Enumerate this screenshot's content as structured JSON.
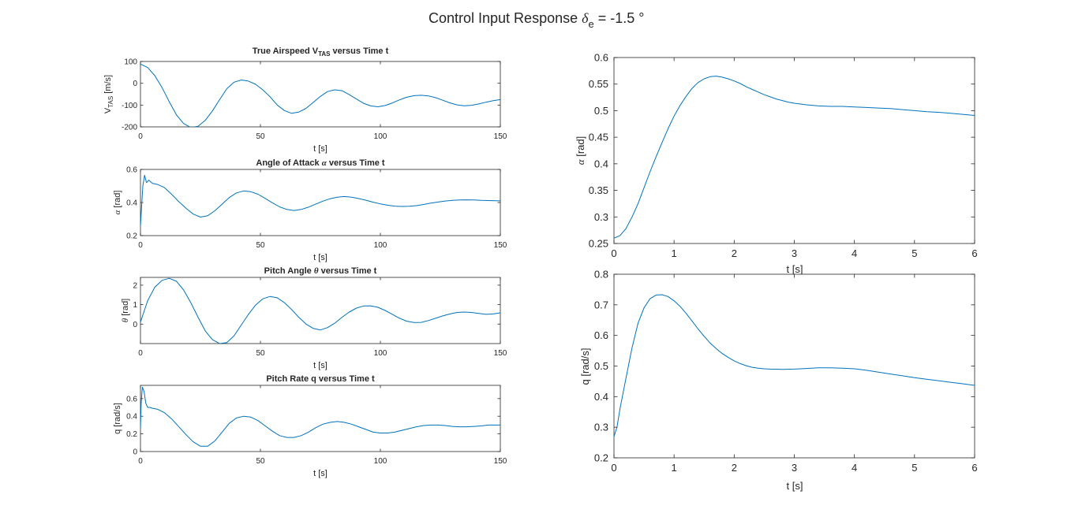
{
  "figure": {
    "title_prefix": "Control Input Response ",
    "title_symbol": "δ",
    "title_subscript": "e",
    "title_suffix": " = -1.5 °"
  },
  "chart_data": [
    {
      "id": "vtas",
      "type": "line",
      "title_pre": "True Airspeed V",
      "title_sub": "TAS",
      "title_post": " versus Time t",
      "xlabel": "t [s]",
      "ylabel_pre": "V",
      "ylabel_sub": "TAS",
      "ylabel_post": " [m/s]",
      "xlim": [
        0,
        150
      ],
      "ylim": [
        -200,
        100
      ],
      "xticks": [
        0,
        50,
        100,
        150
      ],
      "yticks": [
        -200,
        -100,
        0,
        100
      ],
      "grid": false,
      "color": "#0072BD",
      "series": [
        {
          "x": [
            0,
            3,
            6,
            9,
            12,
            15,
            18,
            21,
            24,
            27,
            30,
            33,
            36,
            39,
            42,
            45,
            48,
            51,
            54,
            57,
            60,
            63,
            66,
            69,
            72,
            75,
            78,
            81,
            84,
            87,
            90,
            93,
            96,
            99,
            102,
            105,
            108,
            111,
            114,
            117,
            120,
            123,
            126,
            129,
            132,
            135,
            138,
            141,
            144,
            147,
            150
          ],
          "y": [
            88,
            72,
            35,
            -20,
            -85,
            -145,
            -185,
            -203,
            -197,
            -170,
            -127,
            -75,
            -25,
            5,
            15,
            10,
            -5,
            -30,
            -62,
            -100,
            -125,
            -138,
            -132,
            -115,
            -88,
            -60,
            -38,
            -30,
            -34,
            -52,
            -72,
            -92,
            -104,
            -108,
            -102,
            -90,
            -76,
            -64,
            -57,
            -55,
            -58,
            -66,
            -78,
            -90,
            -99,
            -103,
            -101,
            -95,
            -87,
            -80,
            -75
          ]
        }
      ]
    },
    {
      "id": "alpha-long",
      "type": "line",
      "title_pre": "Angle of Attack ",
      "title_sym": "α",
      "title_post": " versus Time t",
      "xlabel": "t [s]",
      "ylabel_sym": "α",
      "ylabel_post": " [rad]",
      "xlim": [
        0,
        150
      ],
      "ylim": [
        0.2,
        0.6
      ],
      "xticks": [
        0,
        50,
        100,
        150
      ],
      "yticks": [
        0.2,
        0.4,
        0.6
      ],
      "grid": false,
      "color": "#0072BD",
      "series": [
        {
          "x": [
            0,
            0.5,
            1,
            1.7,
            2.5,
            3.5,
            5,
            7,
            10,
            13,
            16,
            19,
            22,
            25,
            28,
            31,
            34,
            37,
            40,
            43,
            46,
            49,
            52,
            55,
            58,
            61,
            64,
            67,
            70,
            73,
            76,
            79,
            82,
            85,
            88,
            91,
            94,
            97,
            100,
            103,
            106,
            109,
            112,
            115,
            118,
            121,
            124,
            127,
            130,
            133,
            136,
            139,
            142,
            145,
            148,
            150
          ],
          "y": [
            0.26,
            0.38,
            0.5,
            0.565,
            0.52,
            0.535,
            0.515,
            0.51,
            0.49,
            0.45,
            0.405,
            0.365,
            0.33,
            0.312,
            0.32,
            0.35,
            0.39,
            0.43,
            0.458,
            0.47,
            0.465,
            0.45,
            0.425,
            0.398,
            0.374,
            0.358,
            0.352,
            0.358,
            0.372,
            0.39,
            0.408,
            0.423,
            0.432,
            0.436,
            0.432,
            0.424,
            0.414,
            0.402,
            0.392,
            0.384,
            0.378,
            0.376,
            0.377,
            0.381,
            0.388,
            0.396,
            0.403,
            0.409,
            0.413,
            0.415,
            0.416,
            0.415,
            0.413,
            0.412,
            0.411,
            0.41
          ]
        }
      ]
    },
    {
      "id": "theta",
      "type": "line",
      "title_pre": "Pitch Angle ",
      "title_sym": "θ",
      "title_post": " versus Time t",
      "xlabel": "t [s]",
      "ylabel_sym": "θ",
      "ylabel_post": " [rad]",
      "xlim": [
        0,
        150
      ],
      "ylim": [
        -1,
        2.4
      ],
      "xticks": [
        0,
        50,
        100,
        150
      ],
      "yticks": [
        0,
        1,
        2
      ],
      "grid": false,
      "color": "#0072BD",
      "series": [
        {
          "x": [
            0,
            3,
            6,
            9,
            12,
            15,
            18,
            21,
            24,
            27,
            30,
            33,
            36,
            39,
            42,
            45,
            48,
            51,
            54,
            57,
            60,
            63,
            66,
            69,
            72,
            75,
            78,
            81,
            84,
            87,
            90,
            93,
            96,
            99,
            102,
            105,
            108,
            111,
            114,
            117,
            120,
            123,
            126,
            129,
            132,
            135,
            138,
            141,
            144,
            147,
            150
          ],
          "y": [
            0.1,
            1.2,
            1.9,
            2.25,
            2.35,
            2.2,
            1.75,
            1.1,
            0.35,
            -0.35,
            -0.8,
            -1.0,
            -0.95,
            -0.6,
            -0.05,
            0.5,
            0.98,
            1.3,
            1.42,
            1.35,
            1.1,
            0.75,
            0.35,
            0.0,
            -0.22,
            -0.3,
            -0.18,
            0.05,
            0.35,
            0.62,
            0.82,
            0.93,
            0.94,
            0.86,
            0.7,
            0.5,
            0.3,
            0.15,
            0.08,
            0.09,
            0.18,
            0.3,
            0.42,
            0.52,
            0.6,
            0.62,
            0.6,
            0.55,
            0.5,
            0.52,
            0.58
          ]
        }
      ]
    },
    {
      "id": "q-long",
      "type": "line",
      "title_pre": "Pitch Rate q versus Time t",
      "xlabel": "t [s]",
      "ylabel": "q [rad/s]",
      "xlim": [
        0,
        150
      ],
      "ylim": [
        0,
        0.75
      ],
      "xticks": [
        0,
        50,
        100,
        150
      ],
      "yticks": [
        0,
        0.2,
        0.4,
        0.6
      ],
      "grid": false,
      "color": "#0072BD",
      "series": [
        {
          "x": [
            0,
            0.3,
            0.8,
            1.5,
            2.2,
            3,
            4,
            5,
            7,
            10,
            13,
            16,
            19,
            22,
            25,
            28,
            31,
            34,
            37,
            40,
            43,
            46,
            49,
            52,
            55,
            58,
            61,
            64,
            67,
            70,
            73,
            76,
            79,
            82,
            85,
            88,
            91,
            94,
            97,
            100,
            103,
            106,
            109,
            112,
            115,
            118,
            121,
            124,
            127,
            130,
            133,
            136,
            139,
            142,
            145,
            148,
            150
          ],
          "y": [
            0.27,
            0.55,
            0.73,
            0.68,
            0.55,
            0.5,
            0.5,
            0.49,
            0.48,
            0.44,
            0.37,
            0.28,
            0.19,
            0.11,
            0.06,
            0.06,
            0.12,
            0.22,
            0.32,
            0.38,
            0.4,
            0.39,
            0.35,
            0.29,
            0.23,
            0.18,
            0.16,
            0.16,
            0.18,
            0.22,
            0.27,
            0.31,
            0.33,
            0.34,
            0.33,
            0.31,
            0.28,
            0.25,
            0.22,
            0.21,
            0.21,
            0.22,
            0.24,
            0.26,
            0.28,
            0.295,
            0.3,
            0.3,
            0.295,
            0.285,
            0.28,
            0.28,
            0.285,
            0.29,
            0.3,
            0.3,
            0.3
          ]
        }
      ]
    },
    {
      "id": "alpha-zoom",
      "type": "line",
      "xlabel": "t [s]",
      "ylabel_sym": "α",
      "ylabel_post": " [rad]",
      "xlim": [
        0,
        6
      ],
      "ylim": [
        0.25,
        0.6
      ],
      "xticks": [
        0,
        1,
        2,
        3,
        4,
        5,
        6
      ],
      "yticks": [
        0.25,
        0.3,
        0.35,
        0.4,
        0.45,
        0.5,
        0.55,
        0.6
      ],
      "grid": false,
      "color": "#0072BD",
      "series": [
        {
          "x": [
            0,
            0.1,
            0.2,
            0.3,
            0.4,
            0.5,
            0.6,
            0.7,
            0.8,
            0.9,
            1.0,
            1.1,
            1.2,
            1.3,
            1.4,
            1.5,
            1.6,
            1.7,
            1.8,
            1.9,
            2.0,
            2.1,
            2.2,
            2.3,
            2.4,
            2.5,
            2.6,
            2.7,
            2.8,
            2.9,
            3.0,
            3.2,
            3.4,
            3.6,
            3.8,
            4.0,
            4.2,
            4.4,
            4.6,
            4.8,
            5.0,
            5.2,
            5.4,
            5.6,
            5.8,
            6.0
          ],
          "y": [
            0.26,
            0.265,
            0.278,
            0.3,
            0.325,
            0.355,
            0.385,
            0.413,
            0.44,
            0.466,
            0.49,
            0.51,
            0.527,
            0.542,
            0.553,
            0.56,
            0.564,
            0.565,
            0.563,
            0.56,
            0.556,
            0.551,
            0.545,
            0.54,
            0.535,
            0.53,
            0.526,
            0.522,
            0.519,
            0.516,
            0.514,
            0.511,
            0.509,
            0.508,
            0.508,
            0.507,
            0.506,
            0.505,
            0.504,
            0.502,
            0.5,
            0.498,
            0.497,
            0.495,
            0.493,
            0.491
          ]
        }
      ]
    },
    {
      "id": "q-zoom",
      "type": "line",
      "xlabel": "t [s]",
      "ylabel": "q [rad/s]",
      "xlim": [
        0,
        6
      ],
      "ylim": [
        0.2,
        0.8
      ],
      "xticks": [
        0,
        1,
        2,
        3,
        4,
        5,
        6
      ],
      "yticks": [
        0.2,
        0.3,
        0.4,
        0.5,
        0.6,
        0.7,
        0.8
      ],
      "grid": false,
      "color": "#0072BD",
      "series": [
        {
          "x": [
            0,
            0.05,
            0.1,
            0.2,
            0.3,
            0.4,
            0.5,
            0.6,
            0.7,
            0.8,
            0.9,
            1.0,
            1.1,
            1.2,
            1.3,
            1.4,
            1.5,
            1.6,
            1.7,
            1.8,
            1.9,
            2.0,
            2.1,
            2.2,
            2.3,
            2.4,
            2.5,
            2.6,
            2.8,
            3.0,
            3.2,
            3.4,
            3.6,
            3.8,
            4.0,
            4.2,
            4.4,
            4.6,
            4.8,
            5.0,
            5.2,
            5.4,
            5.6,
            5.8,
            6.0
          ],
          "y": [
            0.27,
            0.3,
            0.36,
            0.46,
            0.56,
            0.64,
            0.69,
            0.72,
            0.732,
            0.733,
            0.727,
            0.713,
            0.695,
            0.672,
            0.647,
            0.621,
            0.597,
            0.575,
            0.557,
            0.541,
            0.528,
            0.517,
            0.508,
            0.501,
            0.496,
            0.493,
            0.491,
            0.49,
            0.489,
            0.49,
            0.492,
            0.494,
            0.494,
            0.493,
            0.491,
            0.486,
            0.48,
            0.474,
            0.468,
            0.462,
            0.457,
            0.452,
            0.447,
            0.442,
            0.437
          ]
        }
      ]
    }
  ]
}
